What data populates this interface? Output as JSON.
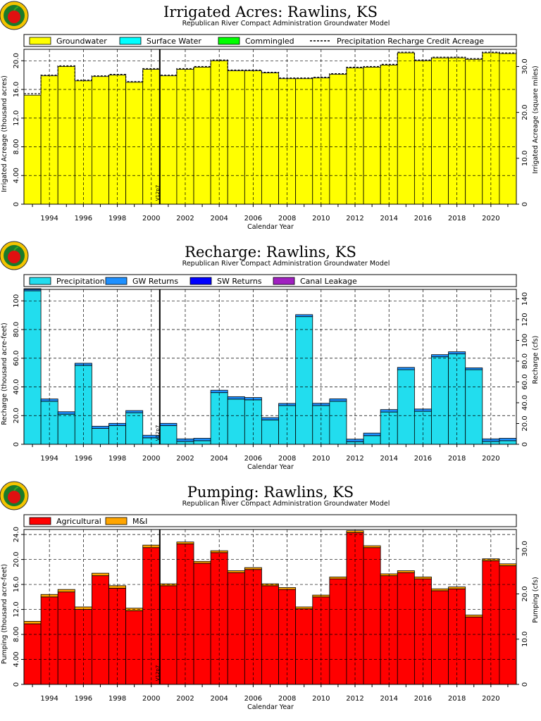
{
  "colors": {
    "groundwater": "#ffff00",
    "surface_water": "#00ffff",
    "commingled": "#00ff00",
    "precipitation": "#22ddee",
    "gw_returns": "#1e90ff",
    "sw_returns": "#0000ff",
    "canal_leakage": "#a020c0",
    "agricultural": "#ff0000",
    "mi": "#ffa500"
  },
  "chart_data": [
    {
      "type": "bar",
      "title": "Irrigated Acres: Rawlins, KS",
      "subtitle": "Republican River Compact Administration Groundwater Model",
      "xlabel": "Calendar Year",
      "ylabel": "Irrigated Acreage (thousand acres)",
      "y2label": "Irrigated Acreage (square miles)",
      "x": [
        1993,
        1994,
        1995,
        1996,
        1997,
        1998,
        1999,
        2000,
        2001,
        2002,
        2003,
        2004,
        2005,
        2006,
        2007,
        2008,
        2009,
        2010,
        2011,
        2012,
        2013,
        2014,
        2015,
        2016,
        2017,
        2018,
        2019,
        2020,
        2021
      ],
      "xlim": [
        1992.5,
        2021.5
      ],
      "ylim": [
        0,
        21.6
      ],
      "y2lim": [
        0,
        33.75
      ],
      "xticks": [
        "1994",
        "1996",
        "1998",
        "2000",
        "2002",
        "2004",
        "2006",
        "2008",
        "2010",
        "2012",
        "2014",
        "2016",
        "2018",
        "2020"
      ],
      "yticks": [
        "0",
        "4.00",
        "8.00",
        "12.0",
        "16.0",
        "20.0"
      ],
      "y2ticks": [
        "0",
        "10.0",
        "20.0",
        "30.0"
      ],
      "grid": true,
      "legend_position": "top",
      "series": [
        {
          "name": "Groundwater",
          "color_key": "groundwater",
          "values": [
            15.2,
            17.9,
            19.2,
            17.2,
            17.8,
            18.0,
            17.0,
            18.8,
            17.9,
            18.8,
            19.1,
            20.0,
            18.6,
            18.6,
            18.3,
            17.5,
            17.5,
            17.6,
            18.1,
            19.0,
            19.1,
            19.4,
            21.1,
            20.0,
            20.4,
            20.4,
            20.2,
            21.1,
            21.0
          ]
        },
        {
          "name": "Surface Water",
          "color_key": "surface_water",
          "values": [
            0,
            0,
            0,
            0,
            0,
            0,
            0,
            0,
            0,
            0,
            0,
            0,
            0,
            0,
            0,
            0,
            0,
            0,
            0,
            0,
            0,
            0,
            0,
            0,
            0,
            0,
            0,
            0,
            0
          ]
        },
        {
          "name": "Commingled",
          "color_key": "commingled",
          "values": [
            0,
            0,
            0,
            0,
            0,
            0,
            0,
            0,
            0,
            0,
            0,
            0,
            0,
            0,
            0,
            0,
            0,
            0,
            0,
            0,
            0,
            0,
            0,
            0,
            0,
            0,
            0,
            0,
            0
          ]
        },
        {
          "name": "Precipitation Recharge Credit Acreage",
          "style": "dashed-line",
          "values": [
            15.4,
            18.0,
            19.3,
            17.3,
            17.9,
            18.1,
            17.1,
            18.9,
            18.0,
            18.9,
            19.2,
            20.1,
            18.7,
            18.7,
            18.4,
            17.6,
            17.6,
            17.7,
            18.2,
            19.1,
            19.2,
            19.5,
            21.2,
            20.1,
            20.5,
            20.5,
            20.3,
            21.2,
            21.1
          ]
        }
      ],
      "annotation": {
        "label": "V12p7",
        "x": 2000.5
      }
    },
    {
      "type": "bar",
      "title": "Recharge: Rawlins, KS",
      "subtitle": "Republican River Compact Administration Groundwater Model",
      "xlabel": "Calendar Year",
      "ylabel": "Recharge (thousand acre-feet)",
      "y2label": "Recharge (cfs)",
      "x": [
        1993,
        1994,
        1995,
        1996,
        1997,
        1998,
        1999,
        2000,
        2001,
        2002,
        2003,
        2004,
        2005,
        2006,
        2007,
        2008,
        2009,
        2010,
        2011,
        2012,
        2013,
        2014,
        2015,
        2016,
        2017,
        2018,
        2019,
        2020,
        2021
      ],
      "xlim": [
        1992.5,
        2021.5
      ],
      "ylim": [
        0,
        108
      ],
      "y2lim": [
        0,
        149.1
      ],
      "xticks": [
        "1994",
        "1996",
        "1998",
        "2000",
        "2002",
        "2004",
        "2006",
        "2008",
        "2010",
        "2012",
        "2014",
        "2016",
        "2018",
        "2020"
      ],
      "yticks": [
        "0",
        "20.0",
        "40.0",
        "60.0",
        "80.0",
        "100"
      ],
      "y2ticks": [
        "0",
        "20.0",
        "40.0",
        "60.0",
        "80.0",
        "100",
        "120",
        "140"
      ],
      "grid": true,
      "legend_position": "top",
      "series": [
        {
          "name": "Precipitation",
          "color_key": "precipitation",
          "values": [
            107,
            30,
            21,
            55,
            11,
            13,
            22,
            4.5,
            13,
            2,
            2.5,
            36,
            31.5,
            31,
            17,
            27,
            89,
            27,
            30,
            1.8,
            6,
            22.5,
            52,
            23,
            61,
            63,
            52,
            2,
            2.5
          ]
        },
        {
          "name": "GW Returns",
          "color_key": "gw_returns",
          "values": [
            1.5,
            1.6,
            1.7,
            1.5,
            1.6,
            1.6,
            1.5,
            1.8,
            1.6,
            1.8,
            1.7,
            1.7,
            1.7,
            1.6,
            1.6,
            1.5,
            1.4,
            1.6,
            1.7,
            1.8,
            1.8,
            1.7,
            1.6,
            1.6,
            1.5,
            1.5,
            1.3,
            1.8,
            1.7
          ]
        },
        {
          "name": "SW Returns",
          "color_key": "sw_returns",
          "values": [
            0,
            0,
            0,
            0,
            0,
            0,
            0,
            0,
            0,
            0,
            0,
            0,
            0,
            0,
            0,
            0,
            0,
            0,
            0,
            0,
            0,
            0,
            0,
            0,
            0,
            0,
            0,
            0,
            0
          ]
        },
        {
          "name": "Canal Leakage",
          "color_key": "canal_leakage",
          "values": [
            0,
            0,
            0,
            0,
            0,
            0,
            0,
            0,
            0,
            0,
            0,
            0,
            0,
            0,
            0,
            0,
            0,
            0,
            0,
            0,
            0,
            0,
            0,
            0,
            0,
            0,
            0,
            0,
            0
          ]
        }
      ],
      "annotation": {
        "label": "V12p7",
        "x": 2000.5
      }
    },
    {
      "type": "bar",
      "title": "Pumping: Rawlins, KS",
      "subtitle": "Republican River Compact Administration Groundwater Model",
      "xlabel": "Calendar Year",
      "ylabel": "Pumping (thousand acre-feet)",
      "y2label": "Pumping (cfs)",
      "x": [
        1993,
        1994,
        1995,
        1996,
        1997,
        1998,
        1999,
        2000,
        2001,
        2002,
        2003,
        2004,
        2005,
        2006,
        2007,
        2008,
        2009,
        2010,
        2011,
        2012,
        2013,
        2014,
        2015,
        2016,
        2017,
        2018,
        2019,
        2020,
        2021
      ],
      "xlim": [
        1992.5,
        2021.5
      ],
      "ylim": [
        0,
        24.8
      ],
      "y2lim": [
        0,
        34.25
      ],
      "xticks": [
        "1994",
        "1996",
        "1998",
        "2000",
        "2002",
        "2004",
        "2006",
        "2008",
        "2010",
        "2012",
        "2014",
        "2016",
        "2018",
        "2020"
      ],
      "yticks": [
        "0",
        "4.00",
        "8.00",
        "12.0",
        "16.0",
        "20.0",
        "24.0"
      ],
      "y2ticks": [
        "0",
        "10.0",
        "20.0",
        "30.0"
      ],
      "grid": true,
      "legend_position": "top",
      "series": [
        {
          "name": "Agricultural",
          "color_key": "agricultural",
          "values": [
            9.7,
            14.0,
            14.8,
            12.0,
            17.4,
            15.4,
            11.8,
            21.9,
            15.8,
            22.5,
            19.4,
            21.1,
            17.9,
            18.4,
            15.8,
            15.2,
            12.1,
            14.0,
            16.9,
            24.3,
            21.9,
            17.4,
            17.9,
            16.9,
            15.0,
            15.3,
            10.8,
            19.8,
            19.0
          ]
        },
        {
          "name": "M&I",
          "color_key": "mi",
          "values": [
            0.4,
            0.4,
            0.4,
            0.4,
            0.4,
            0.4,
            0.4,
            0.4,
            0.3,
            0.3,
            0.3,
            0.3,
            0.3,
            0.3,
            0.3,
            0.3,
            0.3,
            0.3,
            0.3,
            0.3,
            0.3,
            0.3,
            0.3,
            0.3,
            0.3,
            0.3,
            0.3,
            0.3,
            0.3
          ]
        }
      ],
      "annotation": {
        "label": "V12p7",
        "x": 2000.5
      }
    }
  ]
}
